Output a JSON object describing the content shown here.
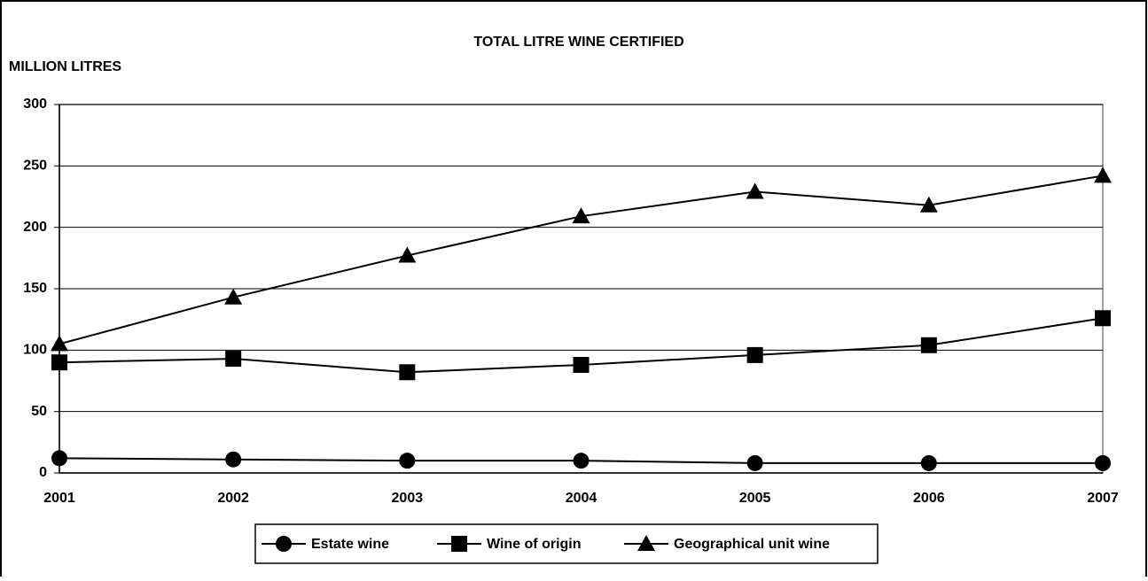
{
  "chart_data": {
    "type": "line",
    "title": "TOTAL LITRE WINE CERTIFIED",
    "y_label": "MILLION LITRES",
    "categories": [
      "2001",
      "2002",
      "2003",
      "2004",
      "2005",
      "2006",
      "2007"
    ],
    "series": [
      {
        "name": "Estate wine",
        "color": "#000000",
        "marker": "circle",
        "values": [
          12,
          11,
          10,
          10,
          8,
          8,
          8
        ]
      },
      {
        "name": "Wine of origin",
        "color": "#000000",
        "marker": "square",
        "values": [
          90,
          93,
          82,
          88,
          96,
          104,
          126
        ]
      },
      {
        "name": "Geographical unit wine",
        "color": "#000000",
        "marker": "triangle",
        "values": [
          105,
          143,
          177,
          209,
          229,
          218,
          242
        ]
      }
    ],
    "ylim": [
      0,
      300
    ],
    "yticks": [
      0,
      50,
      100,
      150,
      200,
      250,
      300
    ],
    "grid": true,
    "legend": "bottom"
  }
}
